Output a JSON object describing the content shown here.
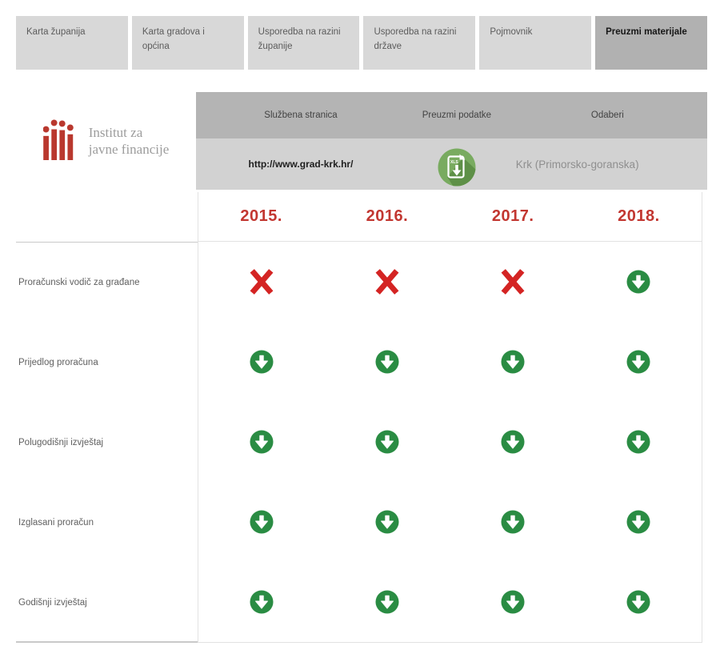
{
  "nav": {
    "tabs": [
      {
        "label": "Karta županija",
        "active": false
      },
      {
        "label": "Karta gradova i općina",
        "active": false
      },
      {
        "label": "Usporedba na razini županije",
        "active": false
      },
      {
        "label": "Usporedba na razini države",
        "active": false
      },
      {
        "label": "Pojmovnik",
        "active": false
      },
      {
        "label": "Preuzmi materijale",
        "active": true
      }
    ]
  },
  "logo": {
    "name": "Institut za javne financije",
    "line1": "Institut za",
    "line2": "javne financije",
    "icon": "ijf-bars-logo"
  },
  "selection_panel": {
    "columns": [
      {
        "header": "Službena stranica",
        "value": "http://www.grad-krk.hr/",
        "type": "link"
      },
      {
        "header": "Preuzmi podatke",
        "value": "xls-download-icon",
        "type": "icon"
      },
      {
        "header": "Odaberi",
        "value": "Krk (Primorsko-goranska)",
        "type": "text"
      }
    ]
  },
  "matrix": {
    "years": [
      "2015.",
      "2016.",
      "2017.",
      "2018."
    ],
    "rows": [
      {
        "label": "Proračunski vodič za građane",
        "cells": [
          "missing",
          "missing",
          "missing",
          "download"
        ]
      },
      {
        "label": "Prijedlog proračuna",
        "cells": [
          "download",
          "download",
          "download",
          "download"
        ]
      },
      {
        "label": "Polugodišnji izvještaj",
        "cells": [
          "download",
          "download",
          "download",
          "download"
        ]
      },
      {
        "label": "Izglasani proračun",
        "cells": [
          "download",
          "download",
          "download",
          "download"
        ]
      },
      {
        "label": "Godišnji izvještaj",
        "cells": [
          "download",
          "download",
          "download",
          "download"
        ]
      }
    ]
  },
  "colors": {
    "accent_red": "#c23731",
    "x_red": "#d42423",
    "download_green": "#2a8c43",
    "xls_icon_green": "#79ab60",
    "xls_icon_shadow": "#5e9047",
    "logo_red": "#b9382e",
    "tab_bg": "#d8d8d8",
    "tab_active_bg": "#b1b1b1",
    "bar_top_bg": "#b4b4b4",
    "bar_bottom_bg": "#d2d2d2"
  }
}
